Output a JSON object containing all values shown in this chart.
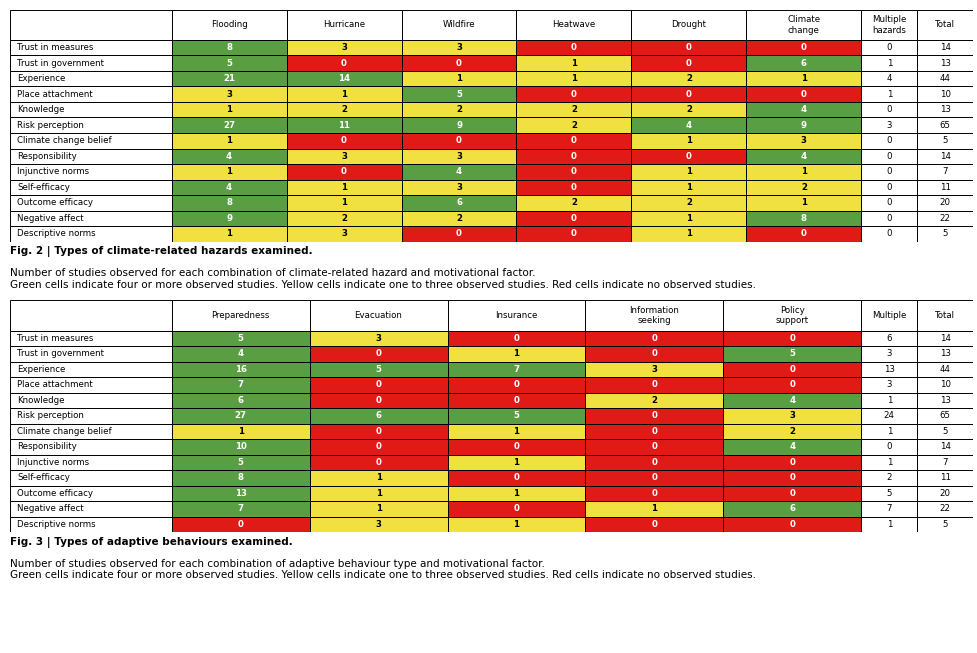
{
  "table1": {
    "col_headers": [
      "Flooding",
      "Hurricane",
      "Wildfire",
      "Heatwave",
      "Drought",
      "Climate\nchange",
      "Multiple\nhazards",
      "Total"
    ],
    "row_headers": [
      "Trust in measures",
      "Trust in government",
      "Experience",
      "Place attachment",
      "Knowledge",
      "Risk perception",
      "Climate change belief",
      "Responsibility",
      "Injunctive norms",
      "Self-efficacy",
      "Outcome efficacy",
      "Negative affect",
      "Descriptive norms"
    ],
    "data": [
      [
        8,
        3,
        3,
        0,
        0,
        0,
        0,
        14
      ],
      [
        5,
        0,
        0,
        1,
        0,
        6,
        1,
        13
      ],
      [
        21,
        14,
        1,
        1,
        2,
        1,
        4,
        44
      ],
      [
        3,
        1,
        5,
        0,
        0,
        0,
        1,
        10
      ],
      [
        1,
        2,
        2,
        2,
        2,
        4,
        0,
        13
      ],
      [
        27,
        11,
        9,
        2,
        4,
        9,
        3,
        65
      ],
      [
        1,
        0,
        0,
        0,
        1,
        3,
        0,
        5
      ],
      [
        4,
        3,
        3,
        0,
        0,
        4,
        0,
        14
      ],
      [
        1,
        0,
        4,
        0,
        1,
        1,
        0,
        7
      ],
      [
        4,
        1,
        3,
        0,
        1,
        2,
        0,
        11
      ],
      [
        8,
        1,
        6,
        2,
        2,
        1,
        0,
        20
      ],
      [
        9,
        2,
        2,
        0,
        1,
        8,
        0,
        22
      ],
      [
        1,
        3,
        0,
        0,
        1,
        0,
        0,
        5
      ]
    ],
    "white_cols": [
      6,
      7
    ]
  },
  "table2": {
    "col_headers": [
      "Preparedness",
      "Evacuation",
      "Insurance",
      "Information\nseeking",
      "Policy\nsupport",
      "Multiple",
      "Total"
    ],
    "row_headers": [
      "Trust in measures",
      "Trust in government",
      "Experience",
      "Place attachment",
      "Knowledge",
      "Risk perception",
      "Climate change belief",
      "Responsibility",
      "Injunctive norms",
      "Self-efficacy",
      "Outcome efficacy",
      "Negative affect",
      "Descriptive norms"
    ],
    "data": [
      [
        5,
        3,
        0,
        0,
        0,
        6,
        14
      ],
      [
        4,
        0,
        1,
        0,
        5,
        3,
        13
      ],
      [
        16,
        5,
        7,
        3,
        0,
        13,
        44
      ],
      [
        7,
        0,
        0,
        0,
        0,
        3,
        10
      ],
      [
        6,
        0,
        0,
        2,
        4,
        1,
        13
      ],
      [
        27,
        6,
        5,
        0,
        3,
        24,
        65
      ],
      [
        1,
        0,
        1,
        0,
        2,
        1,
        5
      ],
      [
        10,
        0,
        0,
        0,
        4,
        0,
        14
      ],
      [
        5,
        0,
        1,
        0,
        0,
        1,
        7
      ],
      [
        8,
        1,
        0,
        0,
        0,
        2,
        11
      ],
      [
        13,
        1,
        1,
        0,
        0,
        5,
        20
      ],
      [
        7,
        1,
        0,
        1,
        6,
        7,
        22
      ],
      [
        0,
        3,
        1,
        0,
        0,
        1,
        5
      ]
    ],
    "white_cols": [
      5,
      6
    ]
  },
  "fig2_caption_bold": "Fig. 2 | Types of climate-related hazards examined.",
  "fig2_caption_normal": " Number of studies observed for each combination of climate-related hazard and motivational factor.\nGreen cells indicate four or more observed studies. Yellow cells indicate one to three observed studies. Red cells indicate no observed studies.",
  "fig3_caption_bold": "Fig. 3 | Types of adaptive behaviours examined.",
  "fig3_caption_normal": " Number of studies observed for each combination of adaptive behaviour type and motivational factor.\nGreen cells indicate four or more observed studies. Yellow cells indicate one to three observed studies. Red cells indicate no observed studies.",
  "color_green": "#5a9e44",
  "color_yellow": "#f0e040",
  "color_red": "#e01b17",
  "color_white": "#ffffff",
  "color_border": "#000000"
}
